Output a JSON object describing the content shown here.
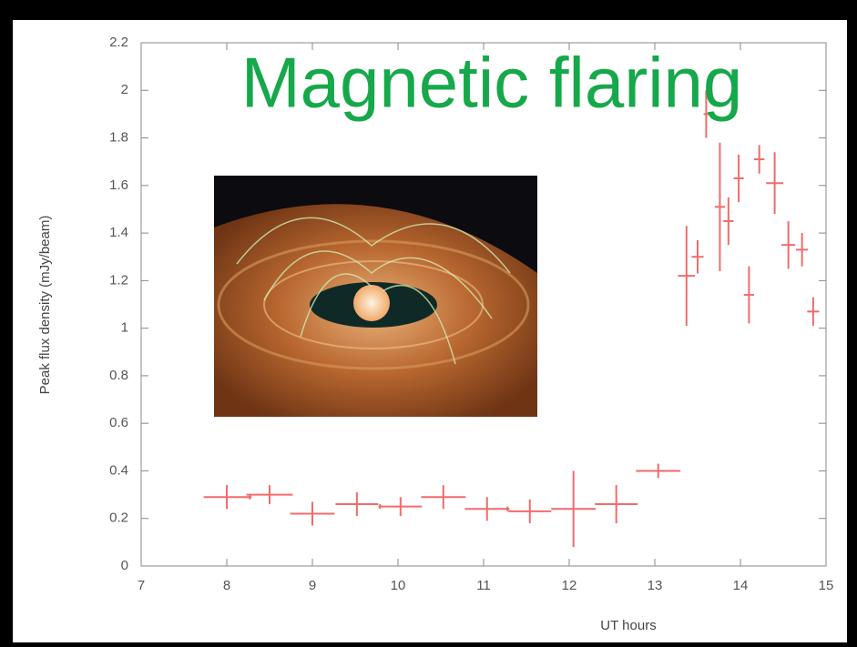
{
  "chart_data": {
    "type": "errorbar",
    "title": "Magnetic flaring",
    "x_label": "UT hours",
    "y_label": "Peak flux density (mJy/beam)",
    "xlim": [
      7,
      15
    ],
    "xticks": [
      7,
      8,
      9,
      10,
      11,
      12,
      13,
      14,
      15
    ],
    "ylim": [
      0,
      2.2
    ],
    "yticks": [
      0,
      0.2,
      0.4,
      0.6,
      0.8,
      1,
      1.2,
      1.4,
      1.6,
      1.8,
      2,
      2.2
    ],
    "series": [
      {
        "color": "#f26b6b",
        "x": [
          8.0,
          8.27,
          8.5,
          9.0,
          9.52,
          9.79,
          10.03,
          10.53,
          11.04,
          11.28,
          11.54,
          12.05,
          12.55,
          13.04,
          13.37,
          13.5,
          13.6,
          13.76,
          13.86,
          13.98,
          14.1,
          14.22,
          14.4,
          14.56,
          14.72,
          14.85
        ],
        "values": [
          0.29,
          0.29,
          0.3,
          0.22,
          0.26,
          0.25,
          0.25,
          0.29,
          0.24,
          0.24,
          0.23,
          0.24,
          0.26,
          0.4,
          1.22,
          1.3,
          1.9,
          1.51,
          1.45,
          1.63,
          1.14,
          1.71,
          1.61,
          1.35,
          1.33,
          1.07
        ],
        "xerr": [
          0.27,
          0.02,
          0.27,
          0.26,
          0.25,
          0.02,
          0.25,
          0.26,
          0.26,
          0.02,
          0.25,
          0.26,
          0.25,
          0.26,
          0.1,
          0.07,
          0.03,
          0.06,
          0.06,
          0.06,
          0.06,
          0.06,
          0.1,
          0.08,
          0.07,
          0.07
        ],
        "yerr": [
          0.05,
          0.01,
          0.04,
          0.05,
          0.05,
          0.01,
          0.04,
          0.05,
          0.05,
          0.01,
          0.05,
          0.16,
          0.08,
          0.03,
          0.21,
          0.07,
          0.1,
          0.27,
          0.1,
          0.1,
          0.12,
          0.06,
          0.13,
          0.1,
          0.07,
          0.06
        ]
      }
    ]
  }
}
